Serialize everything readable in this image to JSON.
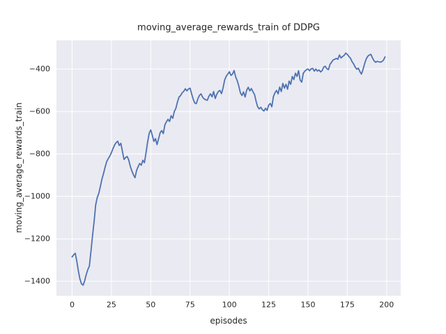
{
  "chart_data": {
    "type": "line",
    "title": "moving_average_rewards_train of DDPG",
    "xlabel": "episodes",
    "ylabel": "moving_average_rewards_train",
    "xlim": [
      -9.95,
      208.95
    ],
    "ylim": [
      -1468,
      -265
    ],
    "grid": true,
    "legend_position": "none",
    "x_ticks": [
      {
        "v": 0,
        "label": "0"
      },
      {
        "v": 25,
        "label": "25"
      },
      {
        "v": 50,
        "label": "50"
      },
      {
        "v": 75,
        "label": "75"
      },
      {
        "v": 100,
        "label": "100"
      },
      {
        "v": 125,
        "label": "125"
      },
      {
        "v": 150,
        "label": "150"
      },
      {
        "v": 175,
        "label": "175"
      },
      {
        "v": 200,
        "label": "200"
      }
    ],
    "y_ticks": [
      {
        "v": -400,
        "label": "−400"
      },
      {
        "v": -600,
        "label": "−600"
      },
      {
        "v": -800,
        "label": "−800"
      },
      {
        "v": -1000,
        "label": "−1000"
      },
      {
        "v": -1200,
        "label": "−1200"
      },
      {
        "v": -1400,
        "label": "−1400"
      }
    ],
    "colors": {
      "line": "#4C72B0",
      "plot_background": "#EAEAF2",
      "gridline": "#FFFFFF",
      "text": "#262626",
      "figure_background": "#FFFFFF"
    },
    "series": [
      {
        "name": "moving_average_rewards_train",
        "x_start": 0,
        "x_step": 1,
        "values": [
          -1285,
          -1275,
          -1268,
          -1305,
          -1352,
          -1390,
          -1412,
          -1418,
          -1398,
          -1368,
          -1345,
          -1328,
          -1258,
          -1185,
          -1118,
          -1040,
          -1005,
          -985,
          -953,
          -918,
          -892,
          -862,
          -836,
          -822,
          -810,
          -794,
          -775,
          -758,
          -747,
          -740,
          -760,
          -750,
          -788,
          -826,
          -817,
          -812,
          -828,
          -858,
          -880,
          -898,
          -912,
          -878,
          -860,
          -845,
          -853,
          -830,
          -841,
          -795,
          -745,
          -703,
          -687,
          -712,
          -741,
          -728,
          -756,
          -728,
          -700,
          -690,
          -704,
          -663,
          -648,
          -637,
          -647,
          -620,
          -632,
          -600,
          -585,
          -555,
          -532,
          -525,
          -512,
          -505,
          -493,
          -503,
          -494,
          -490,
          -517,
          -542,
          -560,
          -563,
          -540,
          -524,
          -517,
          -533,
          -541,
          -545,
          -547,
          -528,
          -517,
          -531,
          -506,
          -539,
          -519,
          -506,
          -501,
          -516,
          -489,
          -452,
          -434,
          -424,
          -413,
          -430,
          -424,
          -407,
          -437,
          -455,
          -480,
          -512,
          -525,
          -508,
          -532,
          -500,
          -486,
          -503,
          -492,
          -507,
          -520,
          -552,
          -578,
          -588,
          -580,
          -592,
          -598,
          -585,
          -595,
          -570,
          -562,
          -578,
          -530,
          -512,
          -501,
          -517,
          -485,
          -506,
          -468,
          -490,
          -472,
          -495,
          -457,
          -472,
          -435,
          -450,
          -420,
          -435,
          -408,
          -452,
          -462,
          -420,
          -410,
          -403,
          -400,
          -408,
          -399,
          -397,
          -410,
          -400,
          -410,
          -404,
          -414,
          -407,
          -391,
          -387,
          -399,
          -403,
          -378,
          -368,
          -357,
          -354,
          -350,
          -354,
          -334,
          -348,
          -341,
          -336,
          -325,
          -331,
          -341,
          -349,
          -365,
          -376,
          -391,
          -401,
          -396,
          -412,
          -424,
          -402,
          -375,
          -353,
          -340,
          -334,
          -331,
          -348,
          -361,
          -368,
          -364,
          -366,
          -368,
          -365,
          -358,
          -343
        ]
      }
    ]
  }
}
